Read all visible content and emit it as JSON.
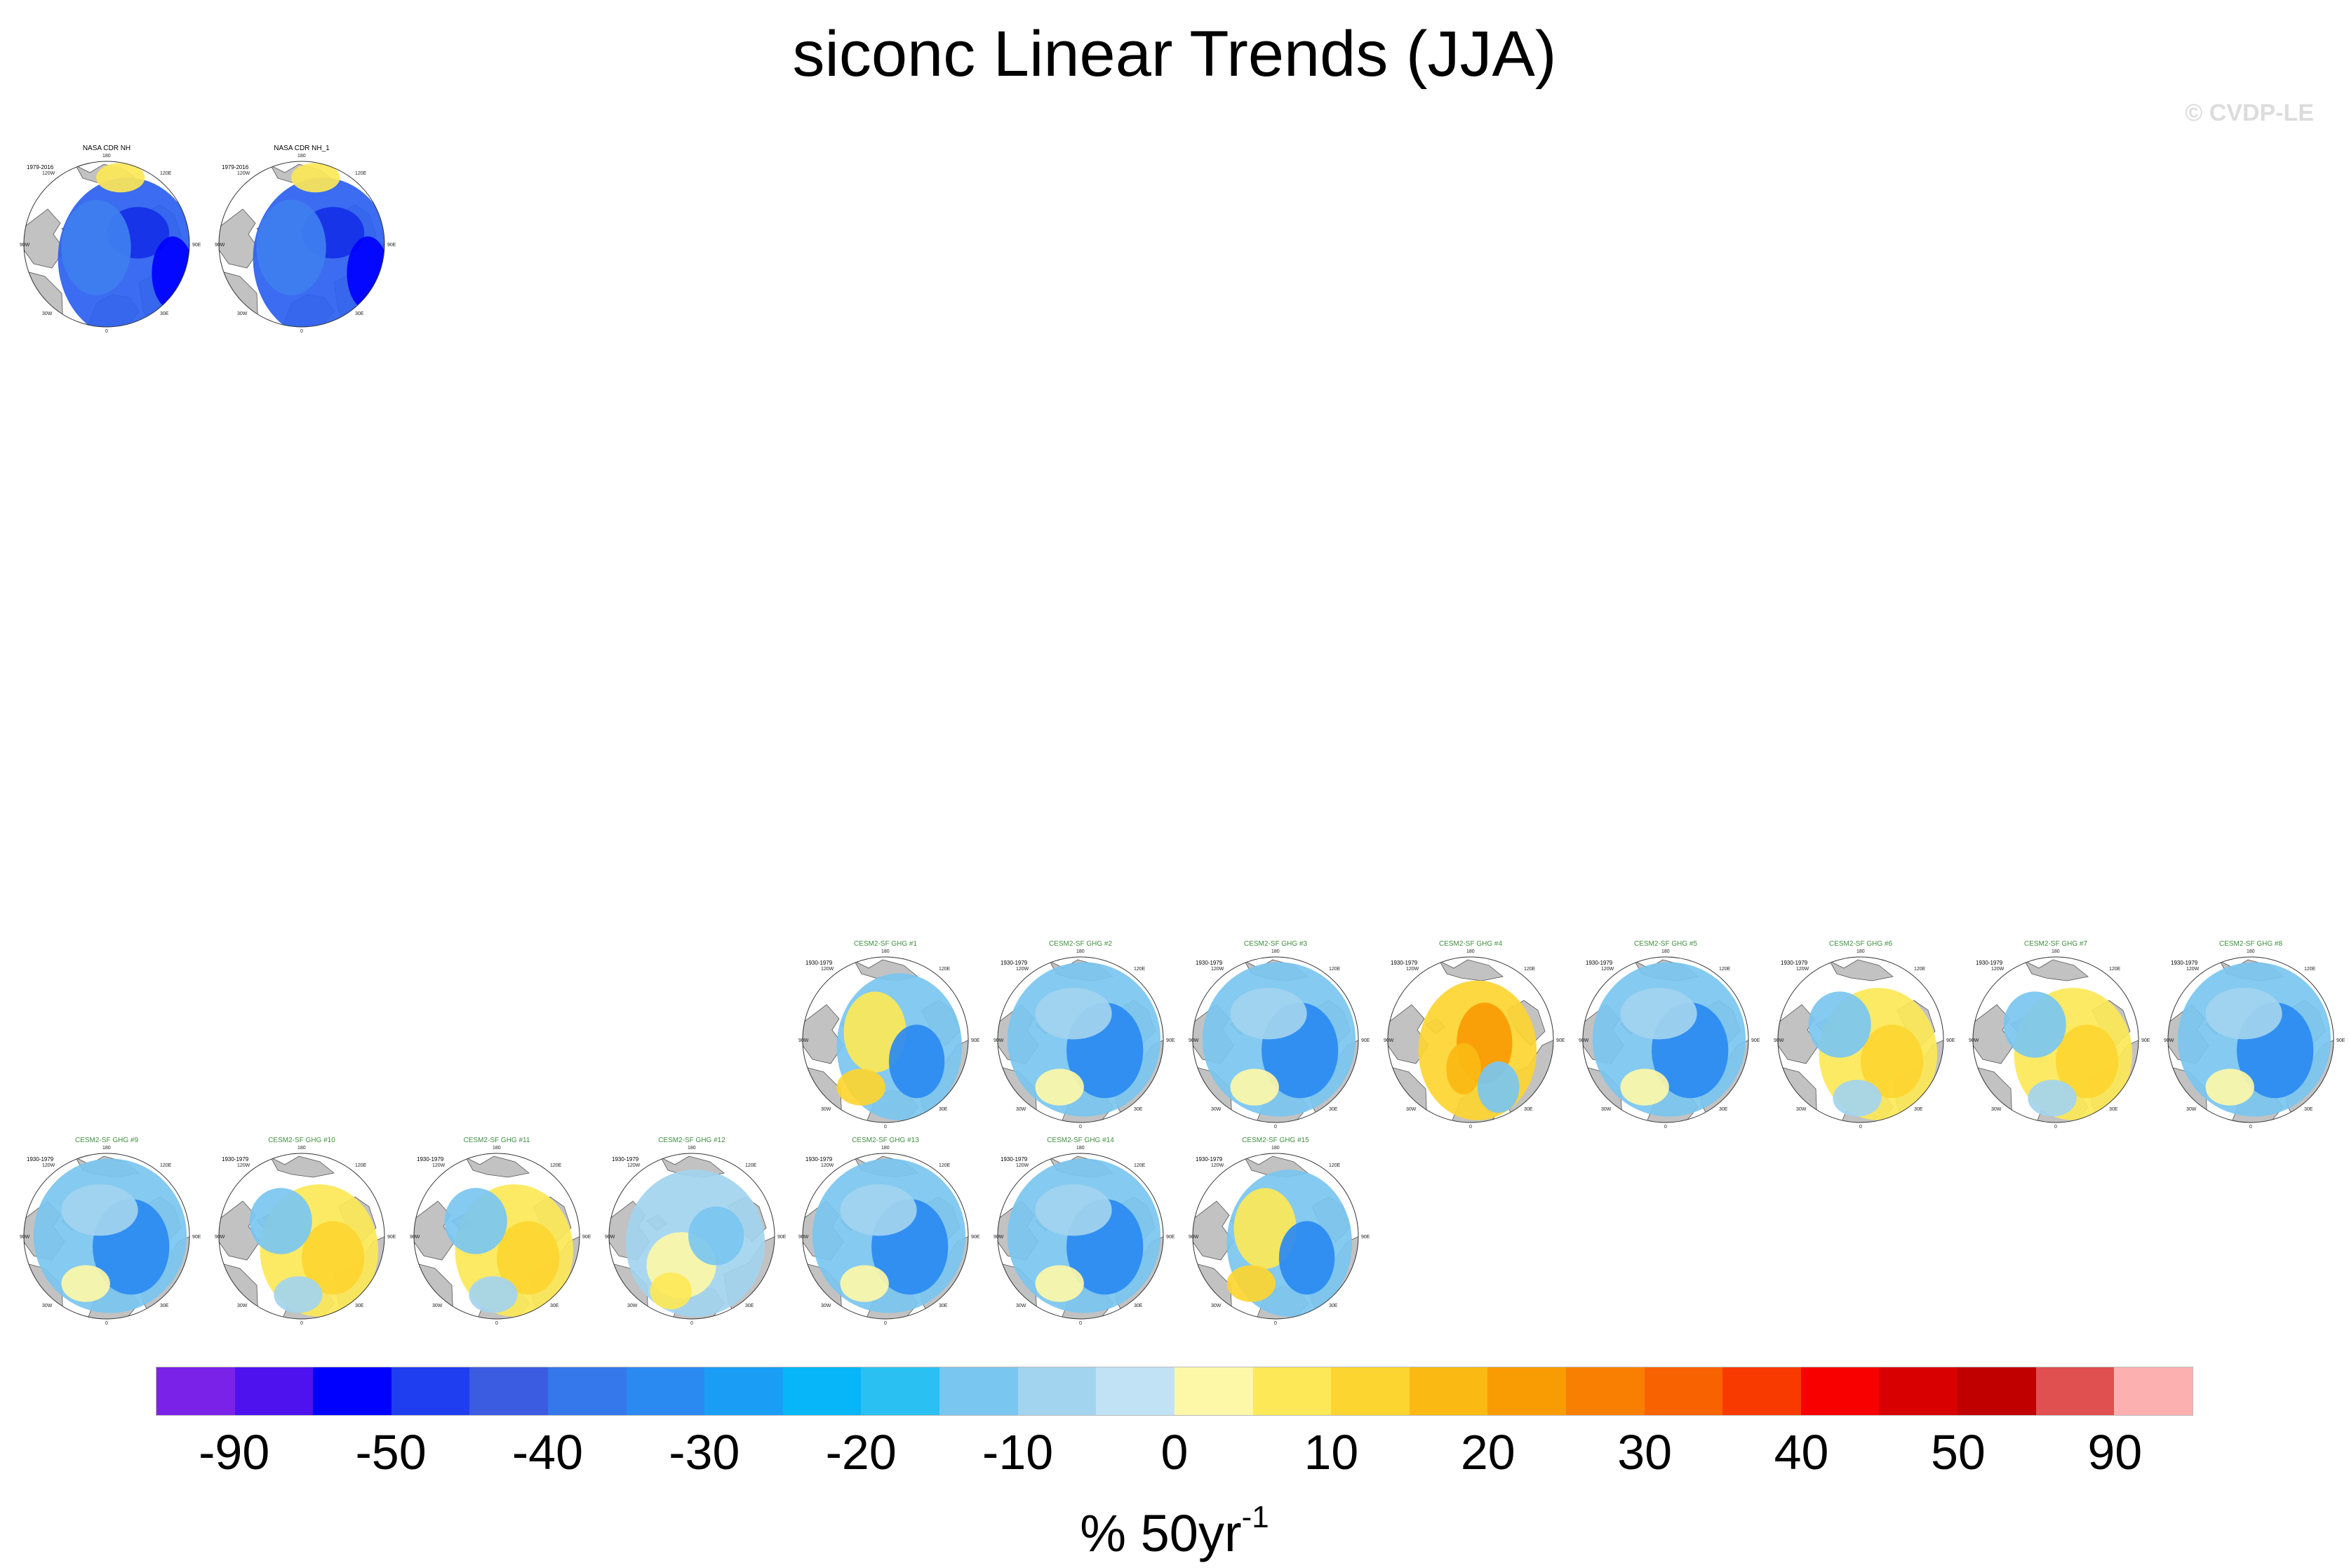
{
  "figure": {
    "title": "siconc Linear Trends (JJA)",
    "copyright": "© CVDP-LE"
  },
  "labels": {
    "top": "180",
    "upper_left": "120W",
    "upper_right": "120E",
    "left": "90W",
    "right": "90E",
    "lower_left": "30W",
    "lower_right": "30E",
    "bottom": "0"
  },
  "panels": [
    {
      "title": "NASA CDR NH",
      "period": "1979-2016",
      "style": "obs",
      "pattern": "deep"
    },
    {
      "title": "NASA CDR NH_1",
      "period": "1979-2016",
      "style": "obs",
      "pattern": "deep"
    },
    {
      "title": "CESM2-SF GHG #1",
      "period": "1930-1979",
      "style": "model",
      "pattern": "mixed"
    },
    {
      "title": "CESM2-SF GHG #2",
      "period": "1930-1979",
      "style": "model",
      "pattern": "blue"
    },
    {
      "title": "CESM2-SF GHG #3",
      "period": "1930-1979",
      "style": "model",
      "pattern": "blue"
    },
    {
      "title": "CESM2-SF GHG #4",
      "period": "1930-1979",
      "style": "model",
      "pattern": "orange"
    },
    {
      "title": "CESM2-SF GHG #5",
      "period": "1930-1979",
      "style": "model",
      "pattern": "blue"
    },
    {
      "title": "CESM2-SF GHG #6",
      "period": "1930-1979",
      "style": "model",
      "pattern": "yellow"
    },
    {
      "title": "CESM2-SF GHG #7",
      "period": "1930-1979",
      "style": "model",
      "pattern": "yellow"
    },
    {
      "title": "CESM2-SF GHG #8",
      "period": "1930-1979",
      "style": "model",
      "pattern": "blue"
    },
    {
      "title": "CESM2-SF GHG #9",
      "period": "1930-1979",
      "style": "model",
      "pattern": "blue"
    },
    {
      "title": "CESM2-SF GHG #10",
      "period": "1930-1979",
      "style": "model",
      "pattern": "yellow"
    },
    {
      "title": "CESM2-SF GHG #11",
      "period": "1930-1979",
      "style": "model",
      "pattern": "yellow"
    },
    {
      "title": "CESM2-SF GHG #12",
      "period": "1930-1979",
      "style": "model",
      "pattern": "light"
    },
    {
      "title": "CESM2-SF GHG #13",
      "period": "1930-1979",
      "style": "model",
      "pattern": "blue"
    },
    {
      "title": "CESM2-SF GHG #14",
      "period": "1930-1979",
      "style": "model",
      "pattern": "blue"
    },
    {
      "title": "CESM2-SF GHG #15",
      "period": "1930-1979",
      "style": "model",
      "pattern": "mixed"
    }
  ],
  "colorbar": {
    "colors": [
      "#7b22e8",
      "#4d12ee",
      "#0000ff",
      "#1f3ef0",
      "#3b5be0",
      "#3478ec",
      "#2a8af2",
      "#1a9ef5",
      "#07b6f8",
      "#2bc0f2",
      "#79c6f0",
      "#a3d4ef",
      "#c0e2f4",
      "#fdf7a8",
      "#fde857",
      "#fdd530",
      "#fbb914",
      "#f99b03",
      "#f97f03",
      "#f86200",
      "#f83a00",
      "#f80000",
      "#d80000",
      "#c00000",
      "#e05050",
      "#fdb0b0"
    ],
    "tick_labels": [
      "-90",
      "-50",
      "-40",
      "-30",
      "-20",
      "-10",
      "0",
      "10",
      "20",
      "30",
      "40",
      "50",
      "90"
    ],
    "units_main": "% 50yr",
    "units_exp": "-1"
  },
  "chart_data": {
    "type": "heatmap",
    "title": "siconc Linear Trends (JJA)",
    "variable": "siconc",
    "season": "JJA",
    "units": "% 50yr-1",
    "colorbar_levels": [
      -90,
      -50,
      -40,
      -30,
      -20,
      -10,
      0,
      10,
      20,
      30,
      40,
      50,
      90
    ],
    "projection": "north polar stereographic",
    "grid": true,
    "panels": [
      {
        "title": "NASA CDR NH",
        "period": "1979-2016",
        "dominant_trend": "strongly negative"
      },
      {
        "title": "NASA CDR NH_1",
        "period": "1979-2016",
        "dominant_trend": "strongly negative"
      },
      {
        "title": "CESM2-SF GHG #1",
        "period": "1930-1979",
        "dominant_trend": "mixed"
      },
      {
        "title": "CESM2-SF GHG #2",
        "period": "1930-1979",
        "dominant_trend": "negative"
      },
      {
        "title": "CESM2-SF GHG #3",
        "period": "1930-1979",
        "dominant_trend": "negative"
      },
      {
        "title": "CESM2-SF GHG #4",
        "period": "1930-1979",
        "dominant_trend": "positive"
      },
      {
        "title": "CESM2-SF GHG #5",
        "period": "1930-1979",
        "dominant_trend": "negative"
      },
      {
        "title": "CESM2-SF GHG #6",
        "period": "1930-1979",
        "dominant_trend": "positive"
      },
      {
        "title": "CESM2-SF GHG #7",
        "period": "1930-1979",
        "dominant_trend": "positive"
      },
      {
        "title": "CESM2-SF GHG #8",
        "period": "1930-1979",
        "dominant_trend": "negative"
      },
      {
        "title": "CESM2-SF GHG #9",
        "period": "1930-1979",
        "dominant_trend": "negative"
      },
      {
        "title": "CESM2-SF GHG #10",
        "period": "1930-1979",
        "dominant_trend": "positive"
      },
      {
        "title": "CESM2-SF GHG #11",
        "period": "1930-1979",
        "dominant_trend": "positive"
      },
      {
        "title": "CESM2-SF GHG #12",
        "period": "1930-1979",
        "dominant_trend": "weak"
      },
      {
        "title": "CESM2-SF GHG #13",
        "period": "1930-1979",
        "dominant_trend": "negative"
      },
      {
        "title": "CESM2-SF GHG #14",
        "period": "1930-1979",
        "dominant_trend": "negative"
      },
      {
        "title": "CESM2-SF GHG #15",
        "period": "1930-1979",
        "dominant_trend": "mixed"
      }
    ]
  }
}
